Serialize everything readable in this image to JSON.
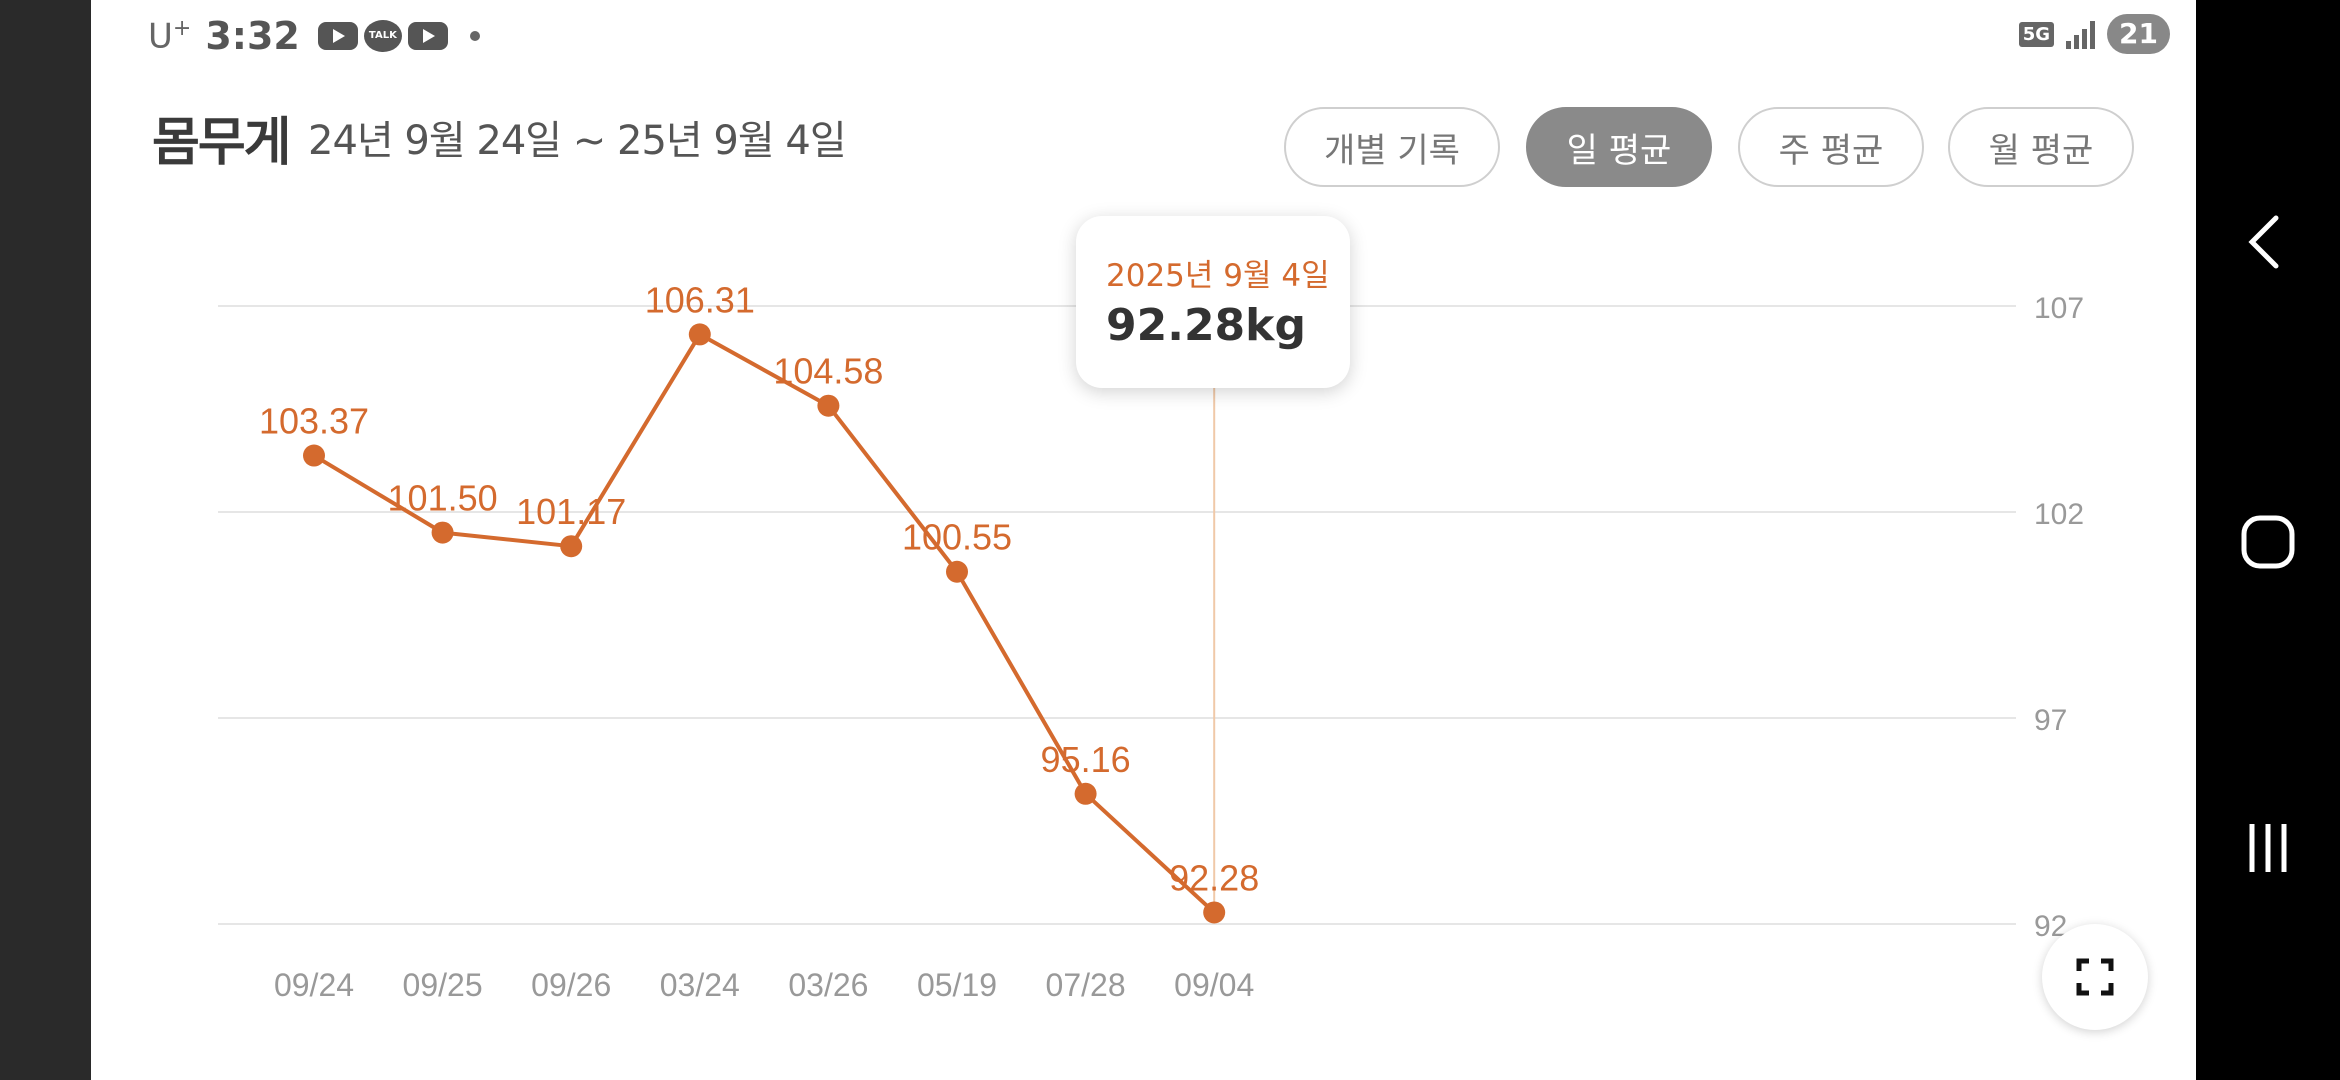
{
  "status_bar": {
    "carrier": "U",
    "carrier_sup": "+",
    "time": "3:32",
    "talk_icon_text": "TALK",
    "network": "5G",
    "battery": "21"
  },
  "header": {
    "title": "몸무게",
    "date_range": "24년 9월 24일 ~ 25년 9월 4일"
  },
  "filters": [
    {
      "label": "개별 기록",
      "active": false
    },
    {
      "label": "일 평균",
      "active": true
    },
    {
      "label": "주 평균",
      "active": false
    },
    {
      "label": "월 평균",
      "active": false
    }
  ],
  "tooltip": {
    "date": "2025년 9월 4일",
    "value": "92.28kg"
  },
  "colors": {
    "accent": "#d46a2e",
    "grid": "#e6e6e6",
    "axis_text": "#999999"
  },
  "chart_data": {
    "type": "line",
    "categories": [
      "09/24",
      "09/25",
      "09/26",
      "03/24",
      "03/26",
      "05/19",
      "07/28",
      "09/04"
    ],
    "series": [
      {
        "values": [
          103.37,
          101.5,
          101.17,
          106.31,
          104.58,
          100.55,
          95.16,
          92.28
        ]
      }
    ],
    "data_labels": [
      "103.37",
      "101.50",
      "101.17",
      "106.31",
      "104.58",
      "100.55",
      "95.16",
      "92.28"
    ],
    "y_ticks": [
      107,
      102,
      97,
      92
    ],
    "ylim": [
      92,
      107
    ],
    "y_axis_side": "right",
    "grid": true,
    "selected_index": 7
  },
  "icons": {
    "fullscreen": "fullscreen-icon",
    "nav_back": "back-icon",
    "nav_home": "home-icon",
    "nav_recent": "recent-apps-icon"
  }
}
